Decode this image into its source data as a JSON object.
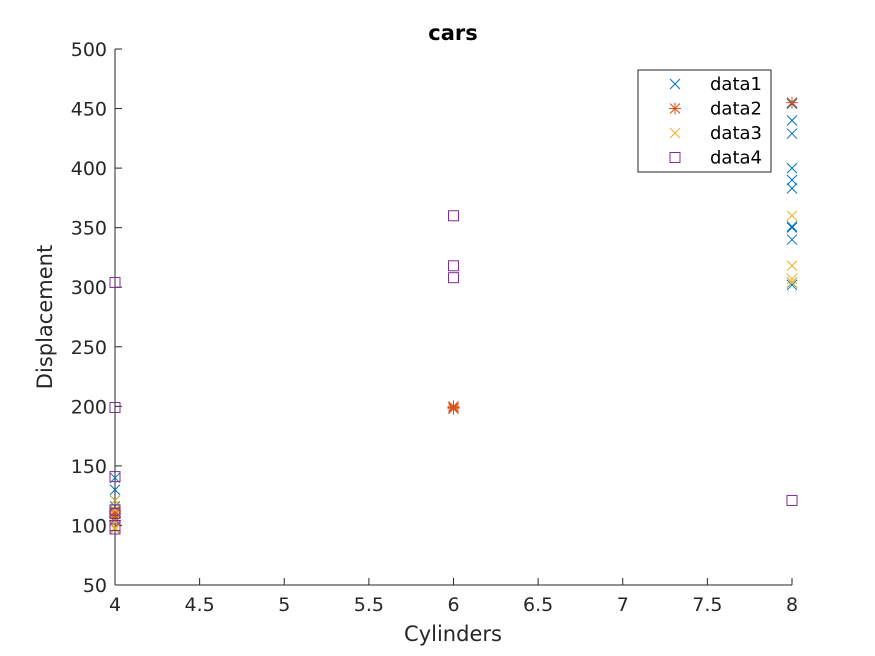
{
  "chart_data": {
    "type": "scatter",
    "title": "cars",
    "xlabel": "Cylinders",
    "ylabel": "Displacement",
    "xlim": [
      4,
      8
    ],
    "ylim": [
      50,
      500
    ],
    "xticks": [
      "4",
      "4.5",
      "5",
      "5.5",
      "6",
      "6.5",
      "7",
      "7.5",
      "8"
    ],
    "yticks": [
      "50",
      "100",
      "150",
      "200",
      "250",
      "300",
      "350",
      "400",
      "450",
      "500"
    ],
    "grid": false,
    "legend_position": "top-right",
    "series": [
      {
        "name": "data1",
        "marker": "x",
        "color": "#0072BD",
        "points": [
          [
            4,
            97
          ],
          [
            4,
            98
          ],
          [
            4,
            105
          ],
          [
            4,
            107
          ],
          [
            4,
            113
          ],
          [
            4,
            116
          ],
          [
            4,
            121
          ],
          [
            4,
            130
          ],
          [
            4,
            140
          ],
          [
            8,
            302
          ],
          [
            8,
            304
          ],
          [
            8,
            340
          ],
          [
            8,
            350
          ],
          [
            8,
            351
          ],
          [
            8,
            383
          ],
          [
            8,
            390
          ],
          [
            8,
            400
          ],
          [
            8,
            429
          ],
          [
            8,
            440
          ],
          [
            8,
            454
          ],
          [
            8,
            455
          ]
        ]
      },
      {
        "name": "data2",
        "marker": "*",
        "color": "#D95319",
        "points": [
          [
            4,
            104
          ],
          [
            4,
            107
          ],
          [
            4,
            110
          ],
          [
            4,
            112
          ],
          [
            6,
            198
          ],
          [
            6,
            199
          ],
          [
            6,
            200
          ],
          [
            8,
            455
          ]
        ]
      },
      {
        "name": "data3",
        "marker": "x",
        "color": "#EDB120",
        "points": [
          [
            4,
            97
          ],
          [
            4,
            98
          ],
          [
            4,
            104
          ],
          [
            4,
            113
          ],
          [
            4,
            121
          ],
          [
            8,
            304
          ],
          [
            8,
            307
          ],
          [
            8,
            318
          ],
          [
            8,
            360
          ]
        ]
      },
      {
        "name": "data4",
        "marker": "square",
        "color": "#7E2F8E",
        "points": [
          [
            4,
            97
          ],
          [
            4,
            100
          ],
          [
            4,
            110
          ],
          [
            4,
            113
          ],
          [
            4,
            141
          ],
          [
            4,
            199
          ],
          [
            4,
            304
          ],
          [
            6,
            308
          ],
          [
            6,
            318
          ],
          [
            6,
            360
          ],
          [
            8,
            121
          ]
        ]
      }
    ]
  }
}
